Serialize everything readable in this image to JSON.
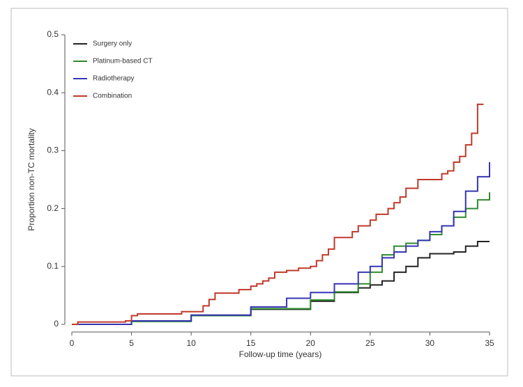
{
  "chart_data": {
    "type": "line",
    "step": true,
    "y_label": "Proportion non-TC mortality",
    "x_label": "Follow-up time (years)",
    "xlim": [
      0,
      35
    ],
    "xticks": [
      0,
      5,
      10,
      15,
      20,
      25,
      30,
      35
    ],
    "ylim": [
      0,
      0.5
    ],
    "yticks": [
      0,
      0.1,
      0.2,
      0.3,
      0.4,
      0.5
    ],
    "grid": false,
    "legend": "upper left",
    "series": [
      {
        "name": "Surgery only",
        "color": "#222222",
        "x": [
          0,
          5,
          10,
          15,
          20,
          22,
          24,
          25,
          26,
          27,
          28,
          29,
          30,
          32,
          33,
          34,
          35
        ],
        "values": [
          0,
          0.006,
          0.016,
          0.026,
          0.04,
          0.055,
          0.063,
          0.068,
          0.075,
          0.09,
          0.1,
          0.115,
          0.122,
          0.125,
          0.135,
          0.143,
          0.143
        ]
      },
      {
        "name": "Platinum-based CT",
        "color": "#2e8b2e",
        "x": [
          0,
          5,
          10,
          15,
          20,
          22,
          24,
          25,
          26,
          27,
          28,
          29,
          30,
          31,
          32,
          33,
          34,
          35
        ],
        "values": [
          0,
          0.005,
          0.015,
          0.027,
          0.042,
          0.056,
          0.07,
          0.09,
          0.12,
          0.135,
          0.14,
          0.145,
          0.155,
          0.17,
          0.185,
          0.2,
          0.215,
          0.228
        ]
      },
      {
        "name": "Radiotherapy",
        "color": "#3535b5",
        "x": [
          0,
          5,
          10,
          15,
          18,
          20,
          22,
          24,
          25,
          26,
          27,
          28,
          29,
          30,
          31,
          32,
          33,
          34,
          35
        ],
        "values": [
          0,
          0.006,
          0.016,
          0.03,
          0.045,
          0.055,
          0.07,
          0.09,
          0.1,
          0.115,
          0.125,
          0.135,
          0.145,
          0.16,
          0.17,
          0.195,
          0.23,
          0.255,
          0.28
        ]
      },
      {
        "name": "Combination",
        "color": "#c0392b",
        "x": [
          0,
          0.5,
          4.5,
          5,
          5.5,
          9,
          9.2,
          10.5,
          11,
          11.5,
          12,
          13.5,
          14,
          15,
          15.5,
          16,
          16.5,
          17,
          18,
          19,
          20,
          20.5,
          21,
          21.5,
          22,
          23,
          23.5,
          24,
          25,
          25.5,
          26.5,
          27,
          27.5,
          28,
          29,
          31,
          31.5,
          32,
          32.5,
          33,
          33.5,
          34,
          34.5
        ],
        "values": [
          0,
          0.004,
          0.006,
          0.015,
          0.018,
          0.018,
          0.022,
          0.022,
          0.032,
          0.043,
          0.054,
          0.054,
          0.06,
          0.066,
          0.07,
          0.075,
          0.08,
          0.09,
          0.093,
          0.097,
          0.1,
          0.11,
          0.12,
          0.13,
          0.15,
          0.15,
          0.16,
          0.17,
          0.18,
          0.19,
          0.2,
          0.21,
          0.22,
          0.235,
          0.25,
          0.26,
          0.265,
          0.28,
          0.29,
          0.31,
          0.33,
          0.38,
          0.38
        ]
      }
    ]
  }
}
